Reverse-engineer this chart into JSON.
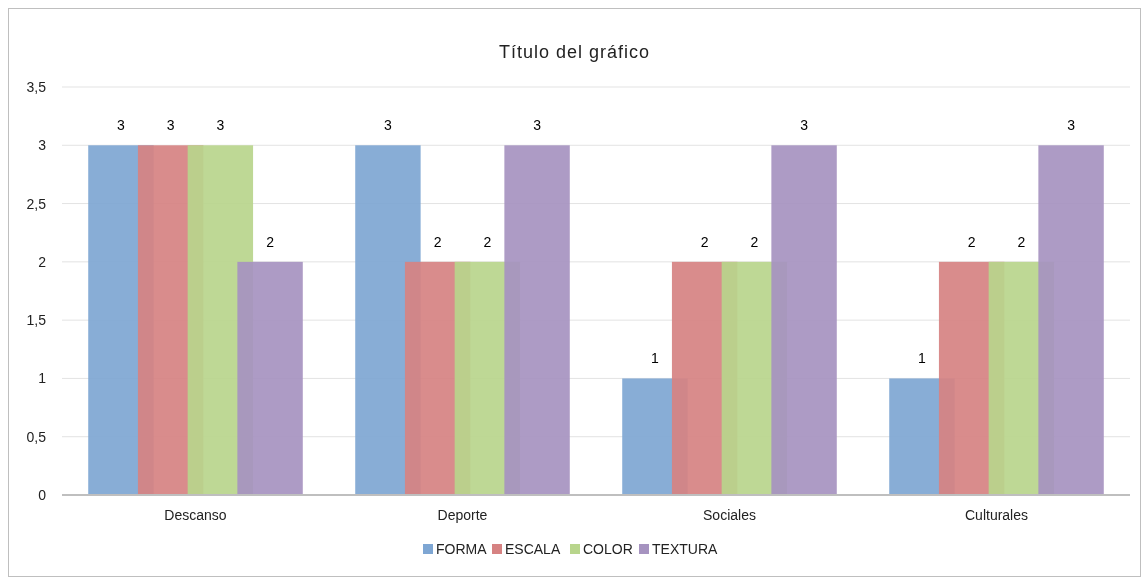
{
  "chart_data": {
    "type": "bar",
    "title": "Título del gráfico",
    "categories": [
      "Descanso",
      "Deporte",
      "Sociales",
      "Culturales"
    ],
    "series": [
      {
        "name": "FORMA",
        "color": "#7ea6d3",
        "values": [
          3,
          3,
          1,
          1
        ]
      },
      {
        "name": "ESCALA",
        "color": "#d68282",
        "values": [
          3,
          2,
          2,
          2
        ]
      },
      {
        "name": "COLOR",
        "color": "#b8d58c",
        "values": [
          3,
          2,
          2,
          2
        ]
      },
      {
        "name": "TEXTURA",
        "color": "#a693c0",
        "values": [
          2,
          3,
          3,
          3
        ]
      }
    ],
    "ylim": [
      0,
      3.5
    ],
    "yticks": [
      0,
      {
        "value": 0.5,
        "label": "0,5"
      },
      1,
      {
        "value": 1.5,
        "label": "1,5"
      },
      2,
      {
        "value": 2.5,
        "label": "2,5"
      },
      3,
      {
        "value": 3.5,
        "label": "3,5"
      }
    ],
    "grid": "y",
    "legend": "bottom",
    "data_labels": true
  }
}
